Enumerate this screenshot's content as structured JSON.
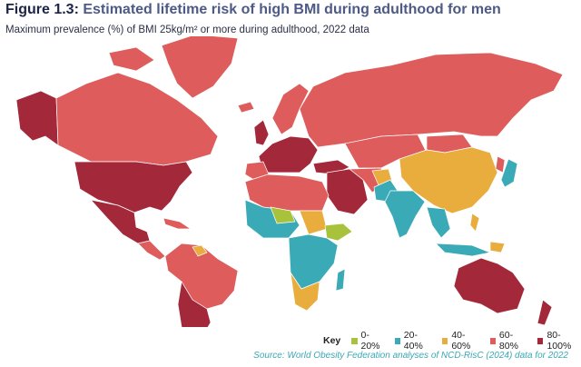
{
  "figure_label": "Figure 1.3:",
  "title": "Estimated lifetime risk of high BMI during adulthood for men",
  "subtitle": "Maximum prevalence (%) of BMI 25kg/m² or more during adulthood, 2022 data",
  "colors": {
    "c0_20": "#a9c23c",
    "c20_40": "#3aaab7",
    "c40_60": "#e8ad3c",
    "c60_80": "#de5d5c",
    "c80_100": "#a3283a"
  },
  "legend": {
    "key_label": "Key",
    "items": [
      {
        "label": "0-20%",
        "color": "#a9c23c"
      },
      {
        "label": "20-40%",
        "color": "#3aaab7"
      },
      {
        "label": "40-60%",
        "color": "#e8ad3c"
      },
      {
        "label": "60-80%",
        "color": "#de5d5c"
      },
      {
        "label": "80-100%",
        "color": "#a3283a"
      }
    ]
  },
  "source": "Source: World Obesity Federation analyses of NCD-RisC (2024) data for 2022"
}
